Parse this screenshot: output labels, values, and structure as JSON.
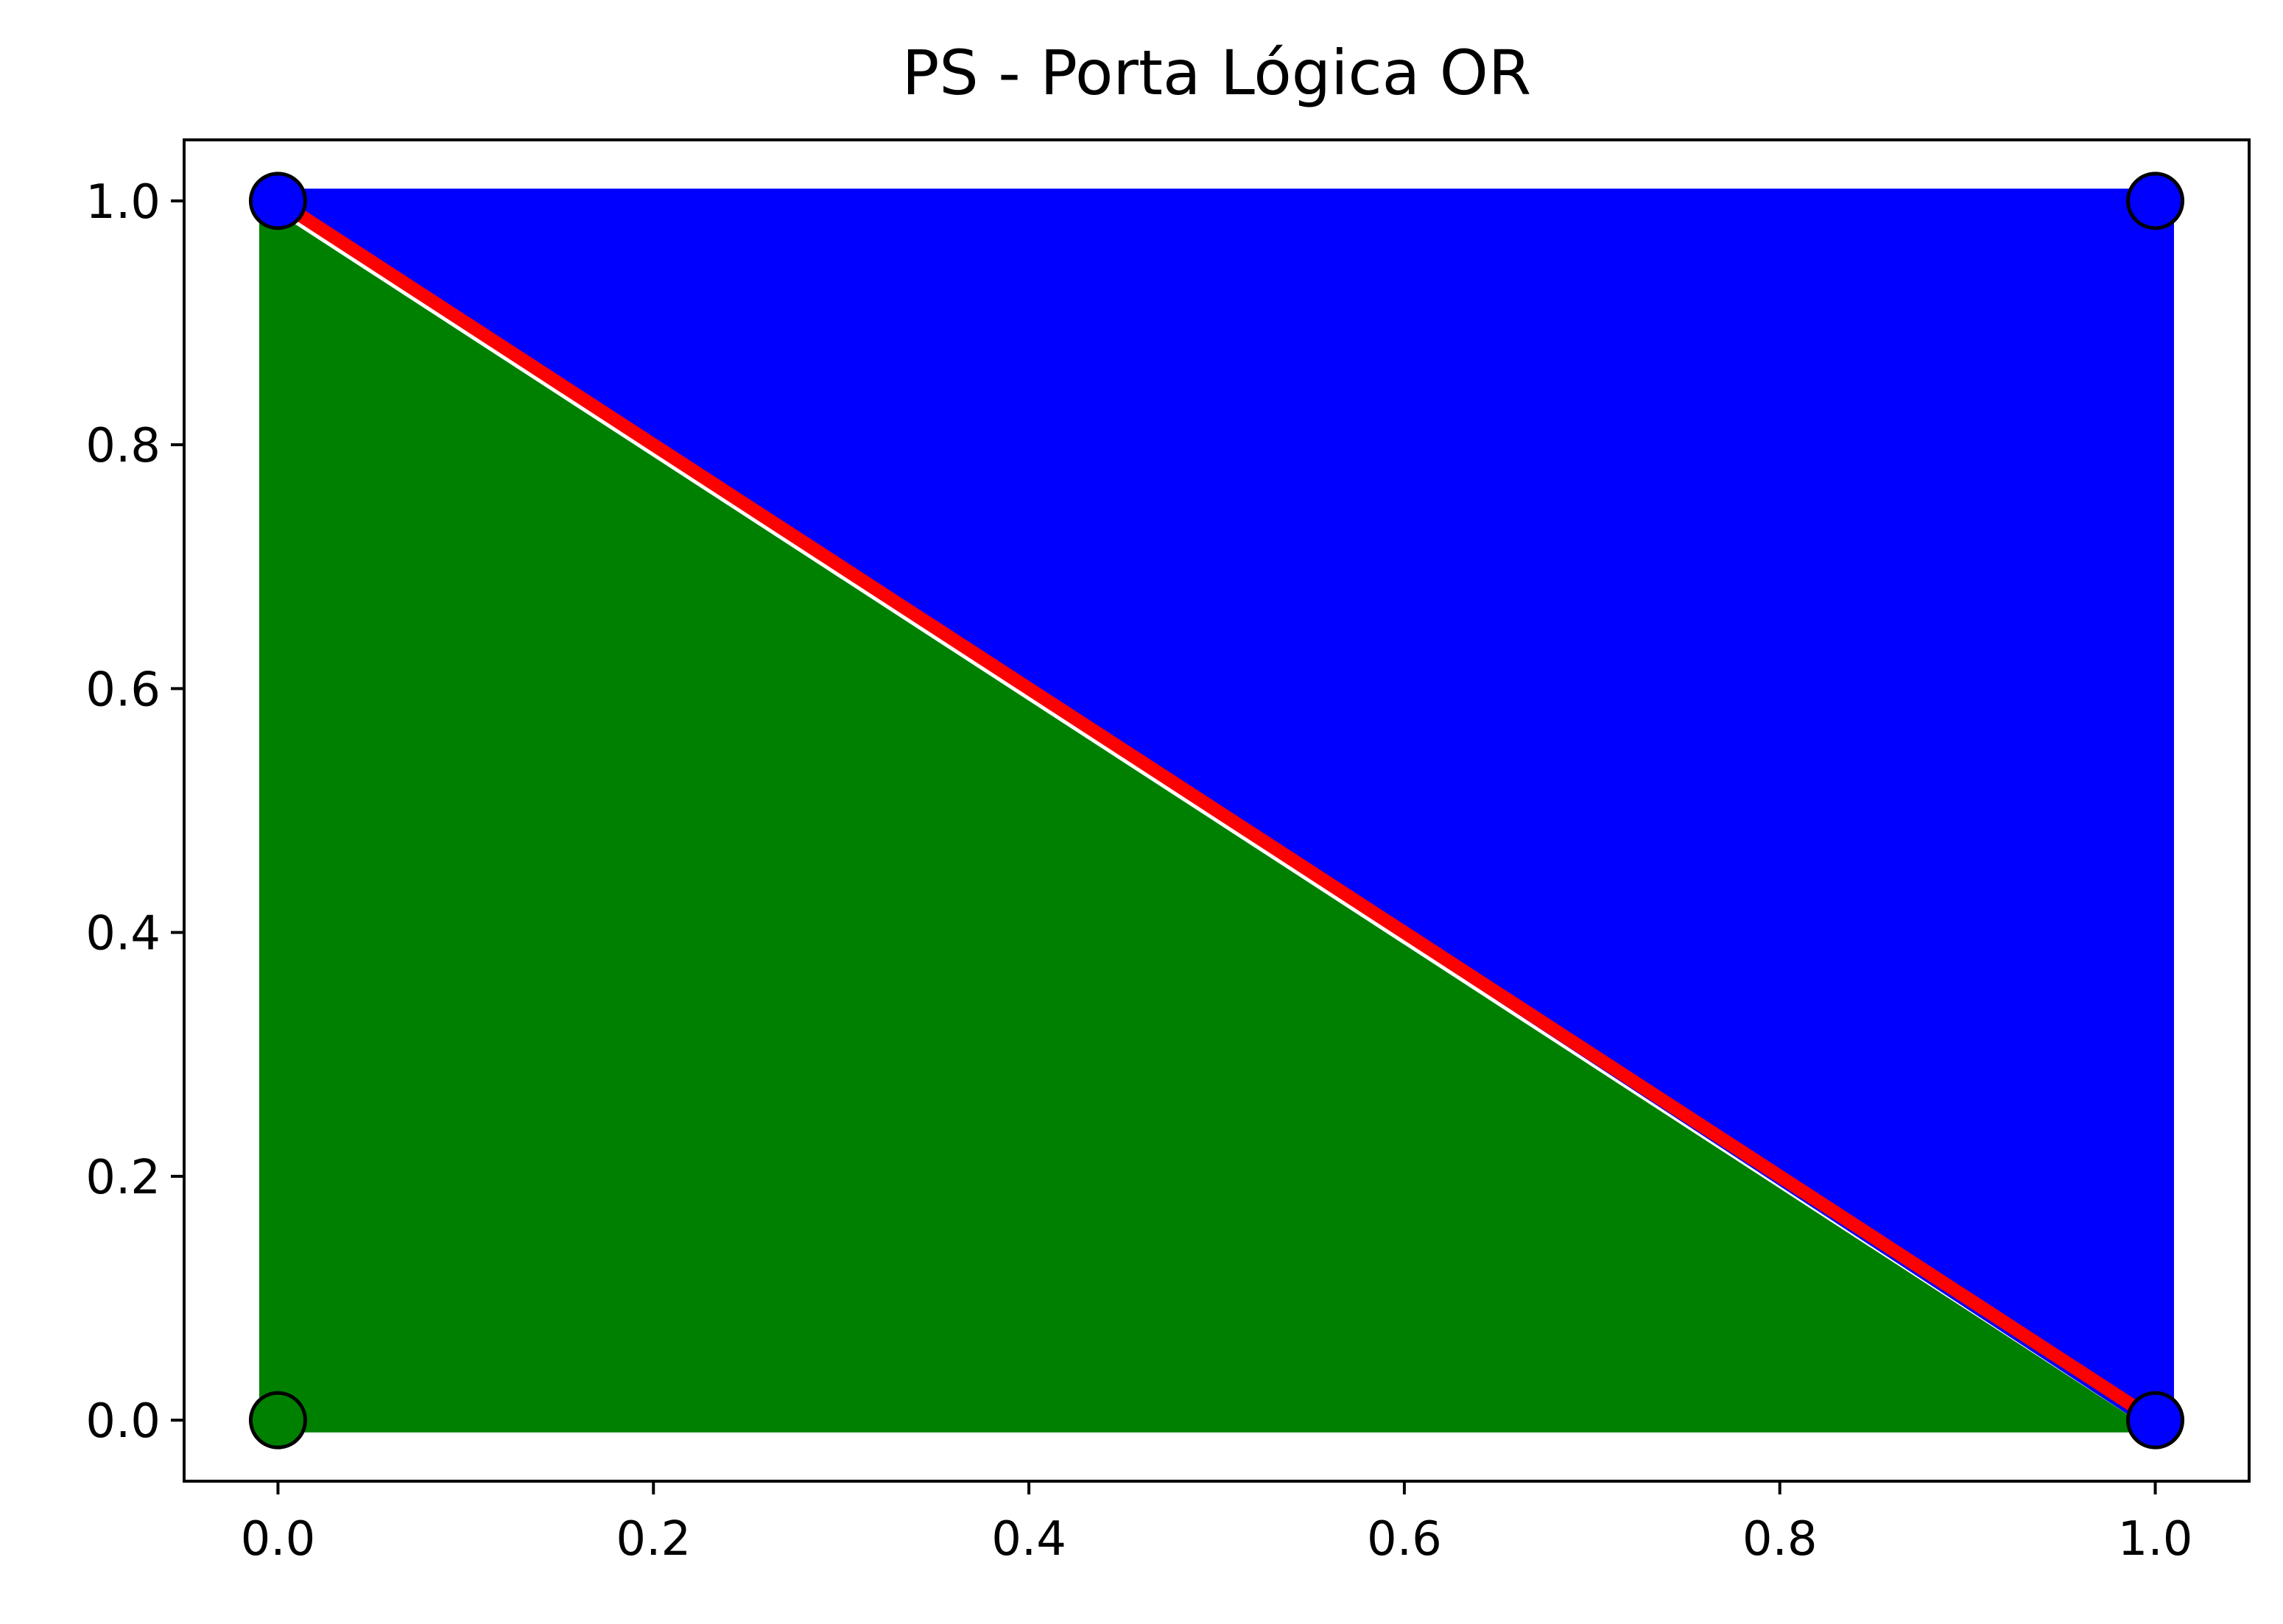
{
  "chart_data": {
    "type": "scatter",
    "title": "PS - Porta Lógica OR",
    "xlabel": "",
    "ylabel": "",
    "xlim": [
      -0.05,
      1.05
    ],
    "ylim": [
      -0.05,
      1.05
    ],
    "xticks": [
      0.0,
      0.2,
      0.4,
      0.6,
      0.8,
      1.0
    ],
    "xtick_labels": [
      "0.0",
      "0.2",
      "0.4",
      "0.6",
      "0.8",
      "1.0"
    ],
    "yticks": [
      0.0,
      0.2,
      0.4,
      0.6,
      0.8,
      1.0
    ],
    "ytick_labels": [
      "0.0",
      "0.2",
      "0.4",
      "0.6",
      "0.8",
      "1.0"
    ],
    "grid": false,
    "legend": false,
    "regions": [
      {
        "class": 0,
        "color": "#008000",
        "polygon": [
          [
            -0.01,
            -0.01
          ],
          [
            -0.01,
            1.0
          ],
          [
            1.0,
            -0.01
          ]
        ]
      },
      {
        "class": 1,
        "color": "#0000ff",
        "polygon": [
          [
            -0.01,
            1.01
          ],
          [
            1.01,
            1.01
          ],
          [
            1.01,
            -0.01
          ],
          [
            1.0,
            -0.01
          ],
          [
            0.0,
            1.0
          ]
        ]
      }
    ],
    "decision_boundary": {
      "color": "#ff0000",
      "x": [
        0.0,
        1.0
      ],
      "y": [
        1.0,
        0.0
      ]
    },
    "points": [
      {
        "x": 0,
        "y": 0,
        "label": 0,
        "color": "#008000"
      },
      {
        "x": 0,
        "y": 1,
        "label": 1,
        "color": "#0000ff"
      },
      {
        "x": 1,
        "y": 0,
        "label": 1,
        "color": "#0000ff"
      },
      {
        "x": 1,
        "y": 1,
        "label": 1,
        "color": "#0000ff"
      }
    ]
  }
}
